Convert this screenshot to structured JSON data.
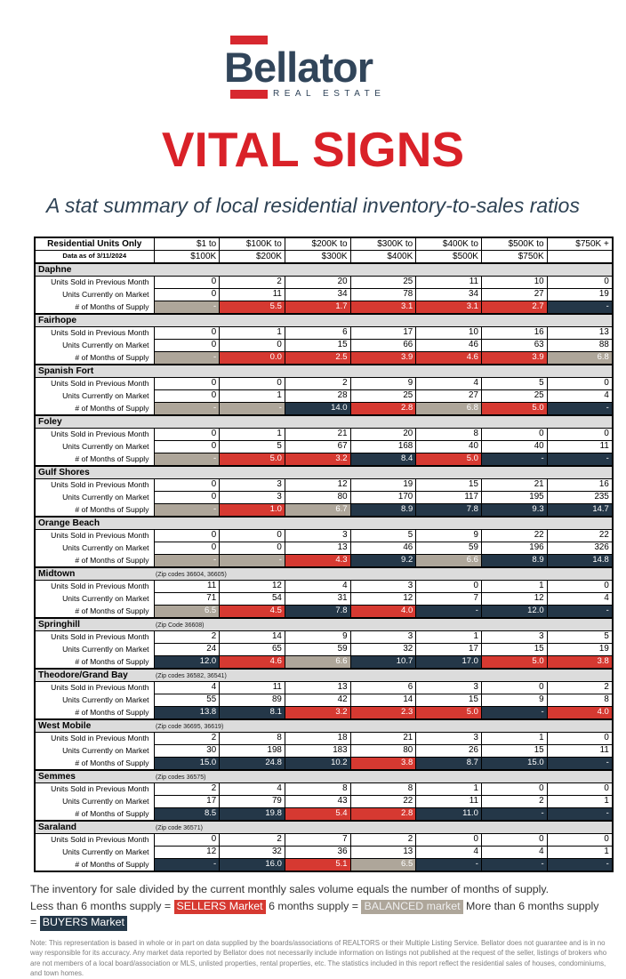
{
  "brand": {
    "logo_text": "Bellator",
    "logo_tagline": "REAL ESTATE"
  },
  "page": {
    "title": "VITAL SIGNS",
    "subtitle": "A stat summary of local residential inventory-to-sales ratios"
  },
  "colors": {
    "sellers": "#D63931",
    "balanced": "#AEA69A",
    "buyers": "#243748",
    "section_bg": "#DCDCDC",
    "title_red": "#D92128",
    "brand_navy": "#31455A"
  },
  "table": {
    "corner_title": "Residential Units Only",
    "corner_subtitle": "Data as of 3/11/2024",
    "columns": [
      {
        "line1": "$1 to",
        "line2": "$100K"
      },
      {
        "line1": "$100K to",
        "line2": "$200K"
      },
      {
        "line1": "$200K to",
        "line2": "$300K"
      },
      {
        "line1": "$300K to",
        "line2": "$400K"
      },
      {
        "line1": "$400K to",
        "line2": "$500K"
      },
      {
        "line1": "$500K to",
        "line2": "$750K"
      },
      {
        "line1": "$750K +",
        "line2": ""
      }
    ],
    "row_labels": {
      "sold": "Units Sold in Previous Month",
      "market": "Units Currently on Market",
      "supply": "# of Months of Supply"
    },
    "sections": [
      {
        "name": "Daphne",
        "zip_note": "",
        "sold": [
          "0",
          "2",
          "20",
          "25",
          "11",
          "10",
          "0"
        ],
        "market": [
          "0",
          "11",
          "34",
          "78",
          "34",
          "27",
          "19"
        ],
        "supply": [
          {
            "v": "-",
            "s": "balanced"
          },
          {
            "v": "5.5",
            "s": "sellers"
          },
          {
            "v": "1.7",
            "s": "sellers"
          },
          {
            "v": "3.1",
            "s": "sellers"
          },
          {
            "v": "3.1",
            "s": "sellers"
          },
          {
            "v": "2.7",
            "s": "sellers"
          },
          {
            "v": "-",
            "s": "buyers"
          }
        ]
      },
      {
        "name": "Fairhope",
        "zip_note": "",
        "sold": [
          "0",
          "1",
          "6",
          "17",
          "10",
          "16",
          "13"
        ],
        "market": [
          "0",
          "0",
          "15",
          "66",
          "46",
          "63",
          "88"
        ],
        "supply": [
          {
            "v": "-",
            "s": "balanced"
          },
          {
            "v": "0.0",
            "s": "sellers"
          },
          {
            "v": "2.5",
            "s": "sellers"
          },
          {
            "v": "3.9",
            "s": "sellers"
          },
          {
            "v": "4.6",
            "s": "sellers"
          },
          {
            "v": "3.9",
            "s": "sellers"
          },
          {
            "v": "6.8",
            "s": "balanced"
          }
        ]
      },
      {
        "name": "Spanish Fort",
        "zip_note": "",
        "sold": [
          "0",
          "0",
          "2",
          "9",
          "4",
          "5",
          "0"
        ],
        "market": [
          "0",
          "1",
          "28",
          "25",
          "27",
          "25",
          "4"
        ],
        "supply": [
          {
            "v": "-",
            "s": "balanced"
          },
          {
            "v": "-",
            "s": "balanced"
          },
          {
            "v": "14.0",
            "s": "buyers"
          },
          {
            "v": "2.8",
            "s": "sellers"
          },
          {
            "v": "6.8",
            "s": "balanced"
          },
          {
            "v": "5.0",
            "s": "sellers"
          },
          {
            "v": "-",
            "s": "buyers"
          }
        ]
      },
      {
        "name": "Foley",
        "zip_note": "",
        "sold": [
          "0",
          "1",
          "21",
          "20",
          "8",
          "0",
          "0"
        ],
        "market": [
          "0",
          "5",
          "67",
          "168",
          "40",
          "40",
          "11"
        ],
        "supply": [
          {
            "v": "-",
            "s": "balanced"
          },
          {
            "v": "5.0",
            "s": "sellers"
          },
          {
            "v": "3.2",
            "s": "sellers"
          },
          {
            "v": "8.4",
            "s": "buyers"
          },
          {
            "v": "5.0",
            "s": "sellers"
          },
          {
            "v": "-",
            "s": "buyers"
          },
          {
            "v": "-",
            "s": "buyers"
          }
        ]
      },
      {
        "name": "Gulf Shores",
        "zip_note": "",
        "sold": [
          "0",
          "3",
          "12",
          "19",
          "15",
          "21",
          "16"
        ],
        "market": [
          "0",
          "3",
          "80",
          "170",
          "117",
          "195",
          "235"
        ],
        "supply": [
          {
            "v": "-",
            "s": "balanced"
          },
          {
            "v": "1.0",
            "s": "sellers"
          },
          {
            "v": "6.7",
            "s": "balanced"
          },
          {
            "v": "8.9",
            "s": "buyers"
          },
          {
            "v": "7.8",
            "s": "buyers"
          },
          {
            "v": "9.3",
            "s": "buyers"
          },
          {
            "v": "14.7",
            "s": "buyers"
          }
        ]
      },
      {
        "name": "Orange Beach",
        "zip_note": "",
        "sold": [
          "0",
          "0",
          "3",
          "5",
          "9",
          "22",
          "22"
        ],
        "market": [
          "0",
          "0",
          "13",
          "46",
          "59",
          "196",
          "326"
        ],
        "supply": [
          {
            "v": "-",
            "s": "balanced"
          },
          {
            "v": "-",
            "s": "balanced"
          },
          {
            "v": "4.3",
            "s": "sellers"
          },
          {
            "v": "9.2",
            "s": "buyers"
          },
          {
            "v": "6.6",
            "s": "balanced"
          },
          {
            "v": "8.9",
            "s": "buyers"
          },
          {
            "v": "14.8",
            "s": "buyers"
          }
        ]
      },
      {
        "name": "Midtown",
        "zip_note": "(Zip codes 36604, 36605)",
        "sold": [
          "11",
          "12",
          "4",
          "3",
          "0",
          "1",
          "0"
        ],
        "market": [
          "71",
          "54",
          "31",
          "12",
          "7",
          "12",
          "4"
        ],
        "supply": [
          {
            "v": "6.5",
            "s": "balanced"
          },
          {
            "v": "4.5",
            "s": "sellers"
          },
          {
            "v": "7.8",
            "s": "buyers"
          },
          {
            "v": "4.0",
            "s": "sellers"
          },
          {
            "v": "-",
            "s": "buyers"
          },
          {
            "v": "12.0",
            "s": "buyers"
          },
          {
            "v": "-",
            "s": "buyers"
          }
        ]
      },
      {
        "name": "Springhill",
        "zip_note": "(Zip Code 36608)",
        "sold": [
          "2",
          "14",
          "9",
          "3",
          "1",
          "3",
          "5"
        ],
        "market": [
          "24",
          "65",
          "59",
          "32",
          "17",
          "15",
          "19"
        ],
        "supply": [
          {
            "v": "12.0",
            "s": "buyers"
          },
          {
            "v": "4.6",
            "s": "sellers"
          },
          {
            "v": "6.6",
            "s": "balanced"
          },
          {
            "v": "10.7",
            "s": "buyers"
          },
          {
            "v": "17.0",
            "s": "buyers"
          },
          {
            "v": "5.0",
            "s": "sellers"
          },
          {
            "v": "3.8",
            "s": "sellers"
          }
        ]
      },
      {
        "name": "Theodore/Grand Bay",
        "zip_note": "(Zip codes 36582, 36541)",
        "sold": [
          "4",
          "11",
          "13",
          "6",
          "3",
          "0",
          "2"
        ],
        "market": [
          "55",
          "89",
          "42",
          "14",
          "15",
          "9",
          "8"
        ],
        "supply": [
          {
            "v": "13.8",
            "s": "buyers"
          },
          {
            "v": "8.1",
            "s": "buyers"
          },
          {
            "v": "3.2",
            "s": "sellers"
          },
          {
            "v": "2.3",
            "s": "sellers"
          },
          {
            "v": "5.0",
            "s": "sellers"
          },
          {
            "v": "-",
            "s": "buyers"
          },
          {
            "v": "4.0",
            "s": "sellers"
          }
        ]
      },
      {
        "name": "West Mobile",
        "zip_note": "(Zip code 36695, 36619)",
        "sold": [
          "2",
          "8",
          "18",
          "21",
          "3",
          "1",
          "0"
        ],
        "market": [
          "30",
          "198",
          "183",
          "80",
          "26",
          "15",
          "11"
        ],
        "supply": [
          {
            "v": "15.0",
            "s": "buyers"
          },
          {
            "v": "24.8",
            "s": "buyers"
          },
          {
            "v": "10.2",
            "s": "buyers"
          },
          {
            "v": "3.8",
            "s": "sellers"
          },
          {
            "v": "8.7",
            "s": "buyers"
          },
          {
            "v": "15.0",
            "s": "buyers"
          },
          {
            "v": "-",
            "s": "buyers"
          }
        ]
      },
      {
        "name": "Semmes",
        "zip_note": "(Zip codes 36575)",
        "sold": [
          "2",
          "4",
          "8",
          "8",
          "1",
          "0",
          "0"
        ],
        "market": [
          "17",
          "79",
          "43",
          "22",
          "11",
          "2",
          "1"
        ],
        "supply": [
          {
            "v": "8.5",
            "s": "buyers"
          },
          {
            "v": "19.8",
            "s": "buyers"
          },
          {
            "v": "5.4",
            "s": "sellers"
          },
          {
            "v": "2.8",
            "s": "sellers"
          },
          {
            "v": "11.0",
            "s": "buyers"
          },
          {
            "v": "-",
            "s": "buyers"
          },
          {
            "v": "-",
            "s": "buyers"
          }
        ]
      },
      {
        "name": "Saraland",
        "zip_note": "(Zip code 36571)",
        "sold": [
          "0",
          "2",
          "7",
          "2",
          "0",
          "0",
          "0"
        ],
        "market": [
          "12",
          "32",
          "36",
          "13",
          "4",
          "4",
          "1"
        ],
        "supply": [
          {
            "v": "-",
            "s": "buyers"
          },
          {
            "v": "16.0",
            "s": "buyers"
          },
          {
            "v": "5.1",
            "s": "sellers"
          },
          {
            "v": "6.5",
            "s": "balanced"
          },
          {
            "v": "-",
            "s": "buyers"
          },
          {
            "v": "-",
            "s": "buyers"
          },
          {
            "v": "-",
            "s": "buyers"
          }
        ]
      }
    ]
  },
  "legend": {
    "line1": "The inventory for sale divided by the current monthly sales volume equals the number of months of supply.",
    "sellers_prefix": "Less than 6 months supply = ",
    "sellers_label": "SELLERS Market",
    "balanced_prefix": " 6 months supply = ",
    "balanced_label": "BALANCED market",
    "buyers_prefix": "  More than 6 months supply = ",
    "buyers_label": "BUYERS Market"
  },
  "note": "Note: This representation is based in whole or in part on data supplied by the boards/associations of REALTORS or their Multiple Listing Service. Bellator does not guarantee and is in no way responsible for its accuracy. Any market data reported by Bellator does not necessarily include information on listings not published at the request of the seller, listings of brokers who are not members of a local board/association or MLS, unlisted properties, rental properties, etc. The statistics included in this report reflect the residential sales of houses, condominiums, and town homes."
}
